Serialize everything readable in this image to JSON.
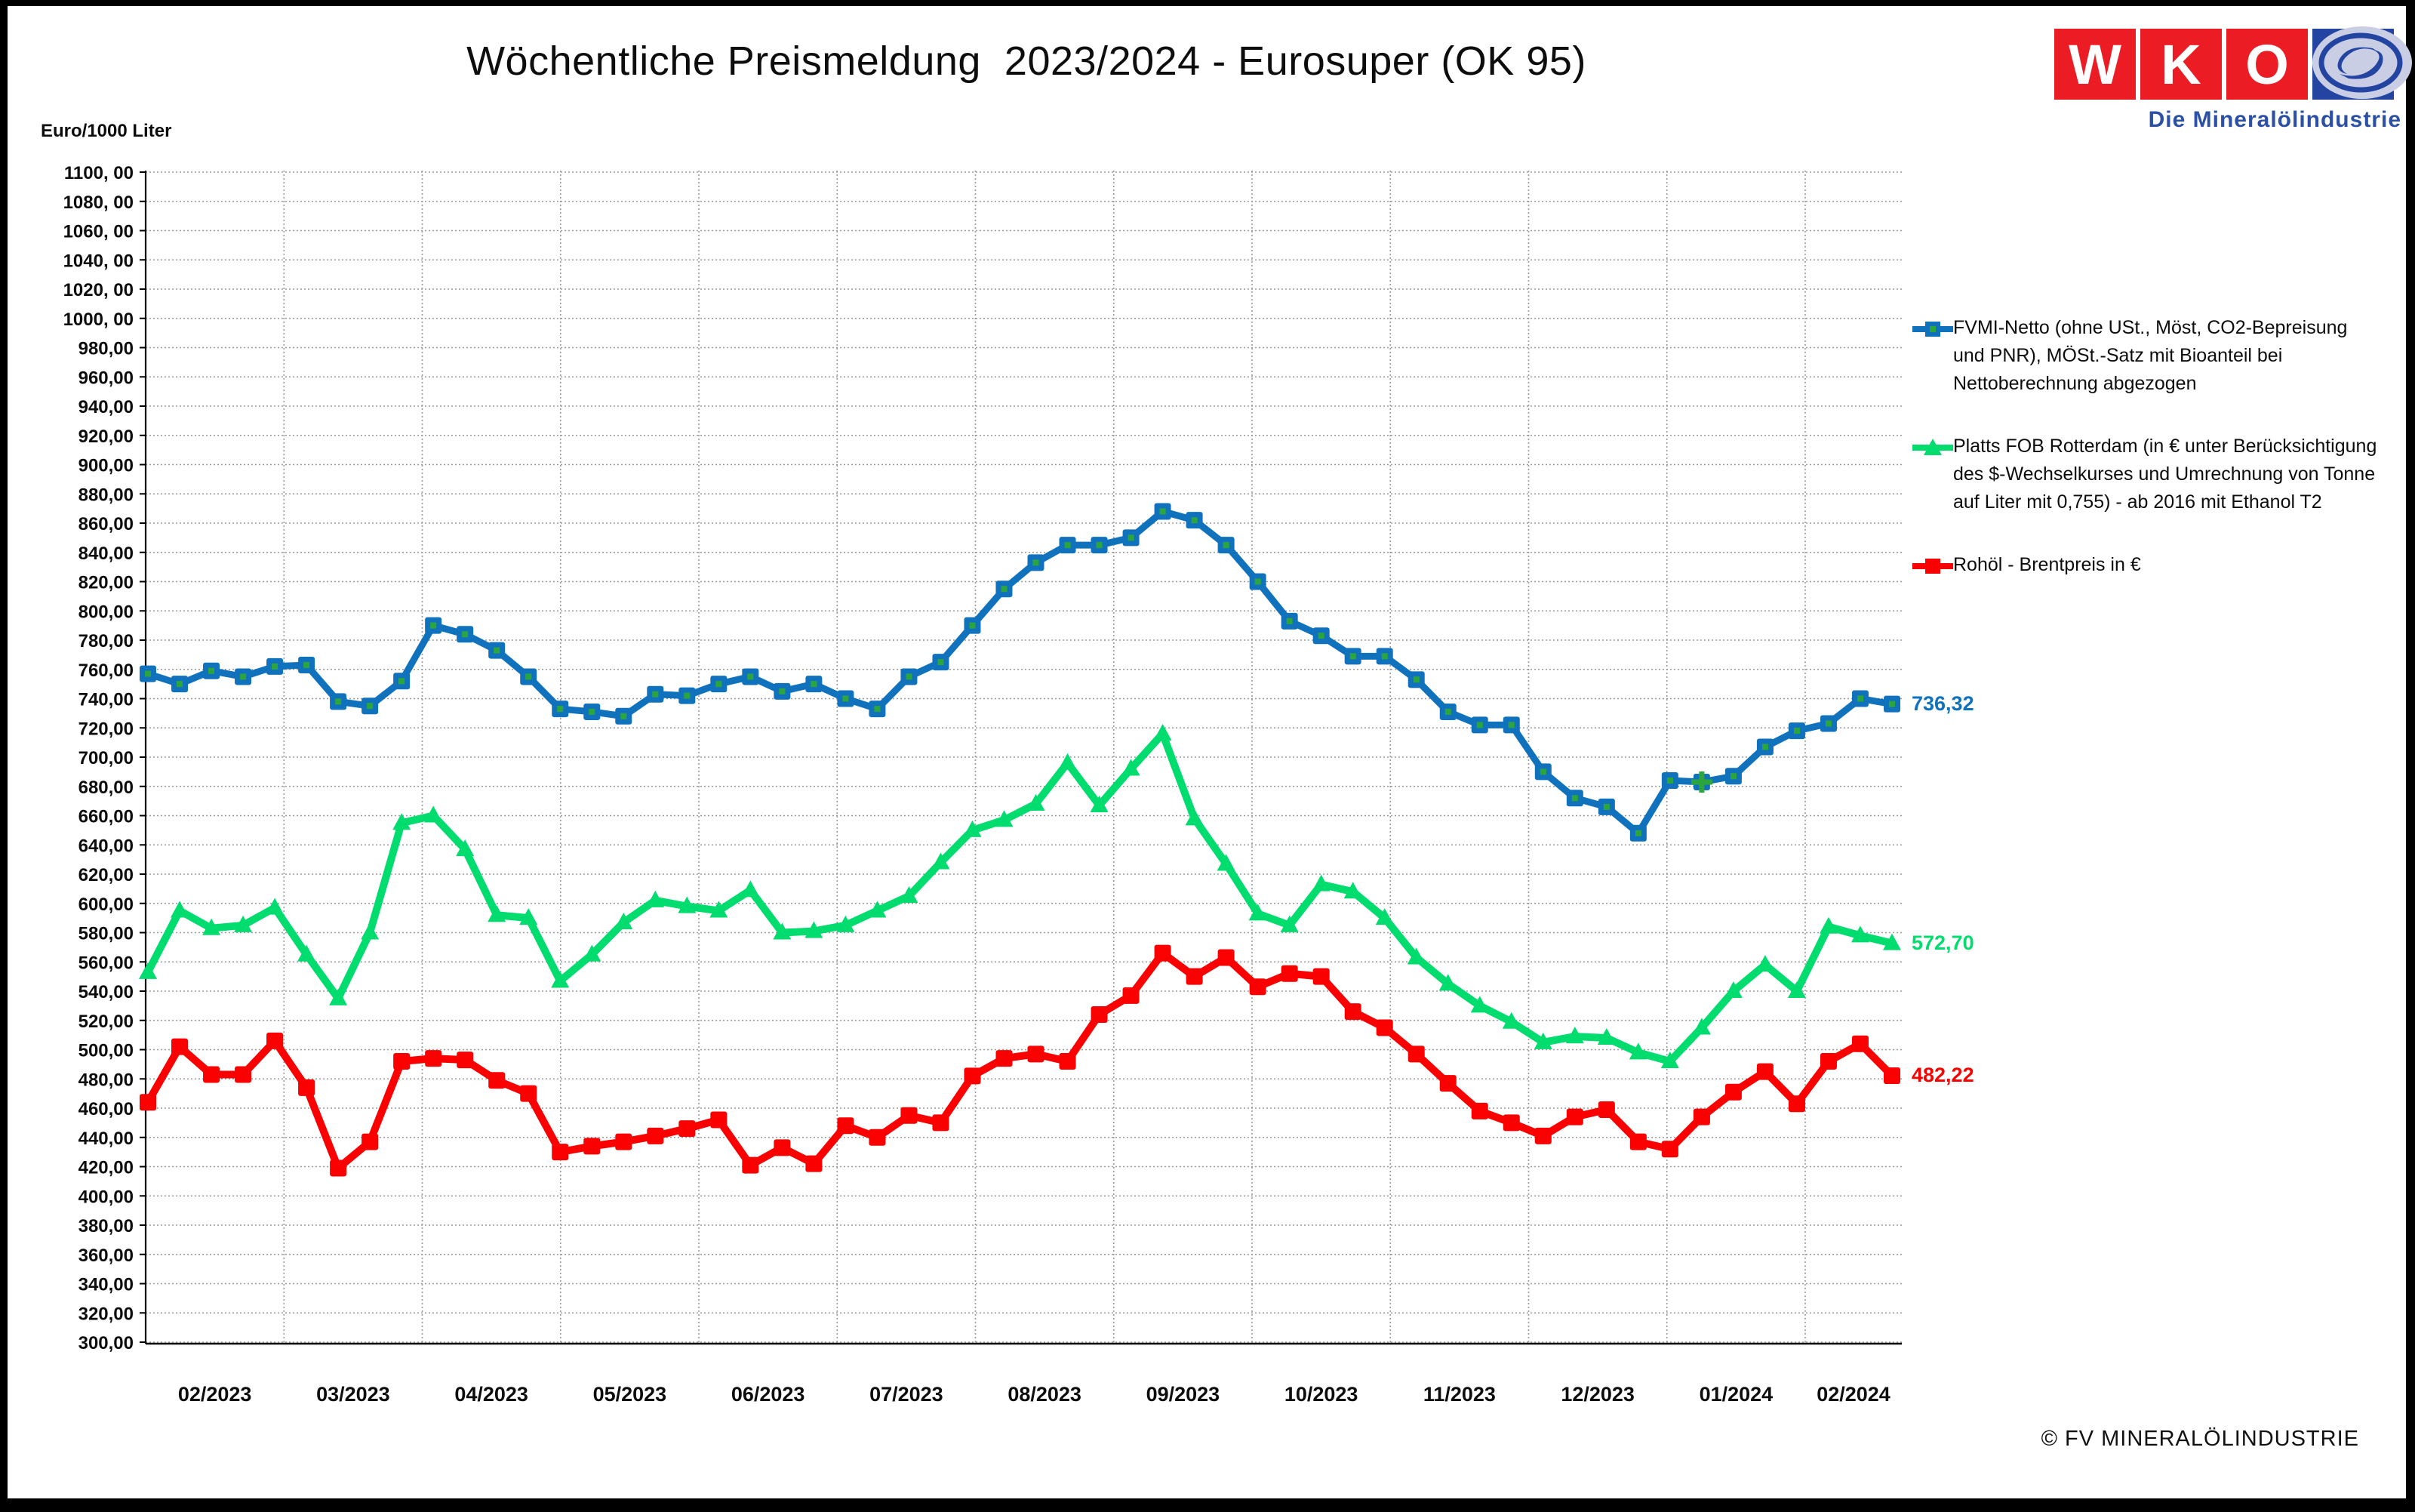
{
  "title": "Wöchentliche Preismeldung  2023/2024 - Eurosuper (OK 95)",
  "y_axis_unit_label": "Euro/1000 Liter",
  "footer_text": "© FV MINERALÖLINDUSTRIE",
  "logo": {
    "letters": [
      "W",
      "K",
      "O"
    ],
    "subtitle": "Die Mineralölindustrie",
    "red": "#ec1c24",
    "blue": "#2344a0",
    "ellipse": "#c9cee5"
  },
  "colors": {
    "fvmi": "#1072bd",
    "platts": "#00dc6e",
    "brent": "#fa0000",
    "marker_inner_green": "#2ca63c",
    "grid": "#9a9a9a",
    "axis": "#000000"
  },
  "end_labels": {
    "fvmi": "736,32",
    "platts": "572,70",
    "brent": "482,22"
  },
  "legend": [
    {
      "marker": "square",
      "lines": [
        "FVMI-Netto (ohne USt., Möst, CO2-Bepreisung",
        "und PNR), MÖSt.-Satz mit Bioanteil bei",
        "Nettoberechnung abgezogen"
      ]
    },
    {
      "marker": "triangle",
      "lines": [
        "Platts FOB Rotterdam (in € unter Berücksichtigung",
        "des $-Wechselkurses und Umrechnung von Tonne",
        "auf Liter mit 0,755) - ab 2016 mit Ethanol T2"
      ]
    },
    {
      "marker": "square",
      "lines": [
        "Rohöl - Brentpreis in €"
      ]
    }
  ],
  "chart_data": {
    "type": "line",
    "title": "Wöchentliche Preismeldung 2023/2024 - Eurosuper (OK 95)",
    "xlabel": "",
    "ylabel": "Euro/1000 Liter",
    "ylim": [
      300,
      1100
    ],
    "ytick_step": 20,
    "grid": true,
    "legend_position": "right",
    "x_interval": "weekly",
    "categories": [
      "02/2023",
      "03/2023",
      "04/2023",
      "05/2023",
      "06/2023",
      "07/2023",
      "08/2023",
      "09/2023",
      "10/2023",
      "11/2023",
      "12/2023",
      "01/2024",
      "02/2024"
    ],
    "series": [
      {
        "name": "FVMI-Netto (ohne USt., Möst, CO2-Bepreisung und PNR), MÖSt.-Satz mit Bioanteil bei Nettoberechnung abgezogen",
        "color": "#1072bd",
        "marker": "square",
        "last_label": "736,32",
        "values": [
          757,
          750,
          759,
          755,
          762,
          763,
          738,
          735,
          752,
          790,
          784,
          773,
          755,
          733,
          731,
          728,
          743,
          742,
          750,
          755,
          745,
          750,
          740,
          733,
          755,
          765,
          790,
          815,
          833,
          845,
          845,
          850,
          868,
          862,
          845,
          820,
          793,
          783,
          769,
          769,
          753,
          731,
          722,
          722,
          690,
          672,
          666,
          648,
          684,
          683,
          687,
          707,
          718,
          723,
          740,
          736.32
        ]
      },
      {
        "name": "Platts FOB Rotterdam (in € unter Berücksichtigung des $-Wechselkurses und Umrechnung von Tonne auf Liter mit 0,755) - ab 2016 mit Ethanol T2",
        "color": "#00dc6e",
        "marker": "triangle",
        "last_label": "572,70",
        "values": [
          553,
          595,
          583,
          585,
          597,
          565,
          535,
          580,
          655,
          660,
          637,
          592,
          590,
          547,
          565,
          587,
          602,
          598,
          595,
          609,
          580,
          581,
          585,
          595,
          605,
          628,
          650,
          657,
          668,
          696,
          667,
          692,
          716,
          658,
          627,
          593,
          585,
          613,
          608,
          590,
          563,
          545,
          530,
          519,
          505,
          509,
          508,
          498,
          492,
          515,
          540,
          558,
          540,
          584,
          578,
          572.7
        ]
      },
      {
        "name": "Rohöl - Brentpreis in €",
        "color": "#fa0000",
        "marker": "square",
        "last_label": "482,22",
        "values": [
          464,
          502,
          483,
          483,
          506,
          474,
          419,
          437,
          492,
          494,
          493,
          479,
          470,
          430,
          434,
          437,
          441,
          446,
          452,
          421,
          433,
          422,
          448,
          440,
          455,
          450,
          482,
          494,
          497,
          492,
          524,
          537,
          566,
          550,
          563,
          543,
          552,
          550,
          526,
          515,
          497,
          477,
          458,
          450,
          441,
          454,
          459,
          437,
          432,
          454,
          471,
          485,
          463,
          492,
          504,
          482.22
        ]
      }
    ],
    "extra_marker": {
      "series_index": 0,
      "point_index": 49,
      "shape": "plus",
      "color": "#2ca63c"
    }
  }
}
